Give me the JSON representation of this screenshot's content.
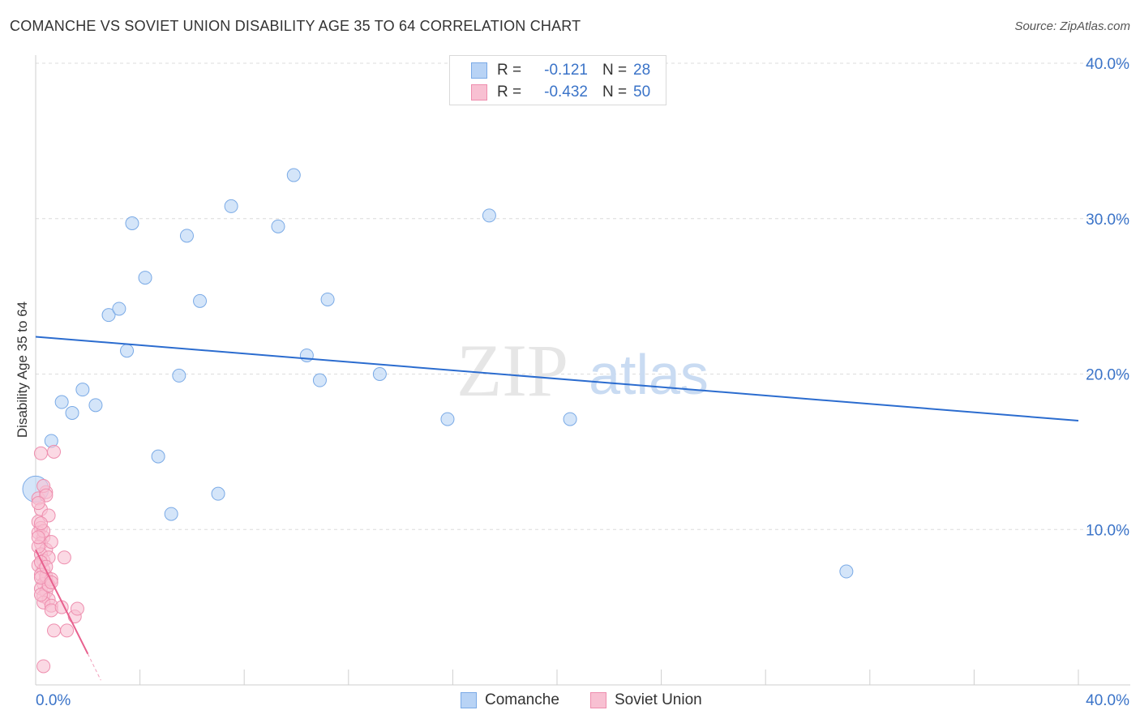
{
  "header": {
    "title": "COMANCHE VS SOVIET UNION DISABILITY AGE 35 TO 64 CORRELATION CHART",
    "source": "Source: ZipAtlas.com"
  },
  "legend": {
    "rows": [
      {
        "r_label": "R =",
        "r_value": "-0.121",
        "n_label": "N =",
        "n_value": "28"
      },
      {
        "r_label": "R =",
        "r_value": "-0.432",
        "n_label": "N =",
        "n_value": "50"
      }
    ]
  },
  "bottom_legend": [
    "Comanche",
    "Soviet Union"
  ],
  "watermark": {
    "part1": "ZIP",
    "part2": "atlas"
  },
  "colors": {
    "comanche_fill": "#b8d3f5",
    "comanche_stroke": "#7aaae6",
    "comanche_line": "#2b6ccf",
    "soviet_fill": "#f8c0d2",
    "soviet_stroke": "#ee8eae",
    "soviet_line": "#e8608e",
    "grid": "#dcdcdc",
    "tick_text": "#3a73c8"
  },
  "chart_data": {
    "type": "scatter",
    "title": "COMANCHE VS SOVIET UNION DISABILITY AGE 35 TO 64 CORRELATION CHART",
    "xlabel": "",
    "ylabel": "Disability Age 35 to 64",
    "xlim": [
      0,
      40
    ],
    "ylim": [
      0,
      40
    ],
    "x_tick_labels": [
      "0.0%",
      "40.0%"
    ],
    "y_ticks": [
      10,
      20,
      30,
      40
    ],
    "y_tick_labels": [
      "10.0%",
      "20.0%",
      "30.0%",
      "40.0%"
    ],
    "grid": true,
    "legend_position": "top-center",
    "series": [
      {
        "name": "Comanche",
        "R": -0.121,
        "N": 28,
        "trend": {
          "x": [
            0,
            40
          ],
          "y": [
            22.4,
            17.0
          ]
        },
        "points": [
          {
            "x": 0.0,
            "y": 12.6,
            "large": true
          },
          {
            "x": 0.6,
            "y": 15.7
          },
          {
            "x": 1.0,
            "y": 18.2
          },
          {
            "x": 1.4,
            "y": 17.5
          },
          {
            "x": 1.8,
            "y": 19.0
          },
          {
            "x": 2.3,
            "y": 18.0
          },
          {
            "x": 2.8,
            "y": 23.8
          },
          {
            "x": 3.2,
            "y": 24.2
          },
          {
            "x": 3.5,
            "y": 21.5
          },
          {
            "x": 3.7,
            "y": 29.7
          },
          {
            "x": 4.2,
            "y": 26.2
          },
          {
            "x": 4.7,
            "y": 14.7
          },
          {
            "x": 5.2,
            "y": 11.0
          },
          {
            "x": 5.5,
            "y": 19.9
          },
          {
            "x": 5.8,
            "y": 28.9
          },
          {
            "x": 6.3,
            "y": 24.7
          },
          {
            "x": 7.0,
            "y": 12.3
          },
          {
            "x": 7.5,
            "y": 30.8
          },
          {
            "x": 9.3,
            "y": 29.5
          },
          {
            "x": 9.9,
            "y": 32.8
          },
          {
            "x": 10.4,
            "y": 21.2
          },
          {
            "x": 10.9,
            "y": 19.6
          },
          {
            "x": 11.2,
            "y": 24.8
          },
          {
            "x": 13.2,
            "y": 20.0
          },
          {
            "x": 15.8,
            "y": 17.1
          },
          {
            "x": 17.4,
            "y": 30.2
          },
          {
            "x": 20.5,
            "y": 17.1
          },
          {
            "x": 31.1,
            "y": 7.3
          }
        ]
      },
      {
        "name": "Soviet Union",
        "R": -0.432,
        "N": 50,
        "trend": {
          "x": [
            0,
            2.0
          ],
          "y": [
            8.7,
            2.0
          ]
        },
        "trend_dashed": {
          "x": [
            2.0,
            2.5
          ],
          "y": [
            2.0,
            0.3
          ]
        },
        "points": [
          {
            "x": 0.1,
            "y": 12.0
          },
          {
            "x": 0.2,
            "y": 11.3
          },
          {
            "x": 0.1,
            "y": 10.5
          },
          {
            "x": 0.2,
            "y": 10.1
          },
          {
            "x": 0.1,
            "y": 9.8
          },
          {
            "x": 0.3,
            "y": 9.5
          },
          {
            "x": 0.2,
            "y": 9.1
          },
          {
            "x": 0.4,
            "y": 8.7
          },
          {
            "x": 0.2,
            "y": 8.4
          },
          {
            "x": 0.3,
            "y": 8.0
          },
          {
            "x": 0.1,
            "y": 7.7
          },
          {
            "x": 0.3,
            "y": 7.4
          },
          {
            "x": 0.2,
            "y": 7.1
          },
          {
            "x": 0.4,
            "y": 6.8
          },
          {
            "x": 0.3,
            "y": 6.5
          },
          {
            "x": 0.2,
            "y": 6.2
          },
          {
            "x": 0.4,
            "y": 6.0
          },
          {
            "x": 0.3,
            "y": 5.7
          },
          {
            "x": 0.5,
            "y": 5.5
          },
          {
            "x": 0.3,
            "y": 5.3
          },
          {
            "x": 0.2,
            "y": 5.8
          },
          {
            "x": 0.4,
            "y": 7.0
          },
          {
            "x": 0.5,
            "y": 8.2
          },
          {
            "x": 0.6,
            "y": 9.2
          },
          {
            "x": 0.5,
            "y": 10.9
          },
          {
            "x": 0.4,
            "y": 12.4
          },
          {
            "x": 0.3,
            "y": 12.8
          },
          {
            "x": 0.2,
            "y": 14.9
          },
          {
            "x": 0.7,
            "y": 15.0
          },
          {
            "x": 0.6,
            "y": 6.8
          },
          {
            "x": 0.6,
            "y": 5.1
          },
          {
            "x": 0.6,
            "y": 4.8
          },
          {
            "x": 0.7,
            "y": 3.5
          },
          {
            "x": 1.0,
            "y": 5.0
          },
          {
            "x": 1.1,
            "y": 8.2
          },
          {
            "x": 1.2,
            "y": 3.5
          },
          {
            "x": 1.5,
            "y": 4.4
          },
          {
            "x": 1.6,
            "y": 4.9
          },
          {
            "x": 0.1,
            "y": 8.9
          },
          {
            "x": 0.2,
            "y": 7.9
          },
          {
            "x": 0.3,
            "y": 1.2
          },
          {
            "x": 0.4,
            "y": 12.2
          },
          {
            "x": 0.1,
            "y": 11.7
          },
          {
            "x": 0.5,
            "y": 6.4
          },
          {
            "x": 0.2,
            "y": 6.9
          },
          {
            "x": 0.3,
            "y": 9.9
          },
          {
            "x": 0.1,
            "y": 9.5
          },
          {
            "x": 0.4,
            "y": 7.6
          },
          {
            "x": 0.2,
            "y": 10.4
          },
          {
            "x": 0.6,
            "y": 6.6
          }
        ]
      }
    ]
  }
}
